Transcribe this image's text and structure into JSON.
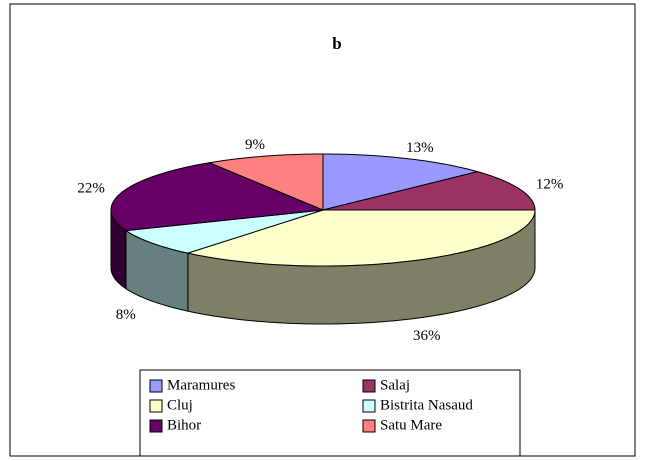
{
  "chart_data": {
    "type": "pie",
    "title": "b",
    "categories": [
      "Maramures",
      "Salaj",
      "Cluj",
      "Bistrita Nasaud",
      "Bihor",
      "Satu Mare"
    ],
    "values": [
      13,
      12,
      36,
      8,
      22,
      9
    ],
    "value_labels": [
      "13%",
      "12%",
      "36%",
      "8%",
      "22%",
      "9%"
    ],
    "colors": [
      "#9999ff",
      "#993366",
      "#ffffcc",
      "#ccffff",
      "#660066",
      "#ff8080"
    ],
    "legend": "bottom"
  }
}
